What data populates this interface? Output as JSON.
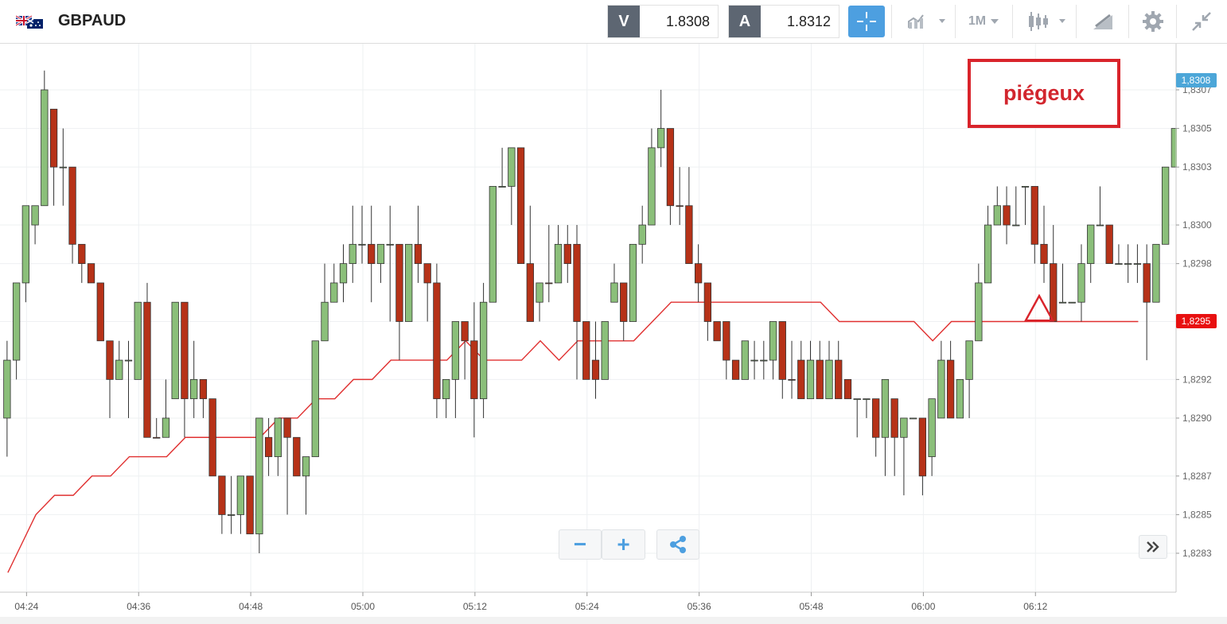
{
  "toolbar": {
    "symbol": "GBPAUD",
    "flag_icon": "gb-au-flag-icon",
    "sell": {
      "tag": "V",
      "price": "1.8308"
    },
    "buy": {
      "tag": "A",
      "price": "1.8312"
    },
    "timeframe": "1M",
    "icons": [
      "crosshair-icon",
      "chart-type-icon",
      "candlestick-icon",
      "draw-tools-icon",
      "gear-icon",
      "collapse-icon"
    ]
  },
  "annotation": {
    "text": "piégeux"
  },
  "controls": {
    "zoom_out": "−",
    "zoom_in": "+",
    "share_icon": "share-icon",
    "forward_icon": "double-chevron-icon"
  },
  "chart_data": {
    "type": "candlestick",
    "title": "",
    "xlabel": "",
    "ylabel": "",
    "ylim": [
      1.82825,
      1.83085
    ],
    "y_ticks": [
      "1,8283",
      "1,8285",
      "1,8287",
      "1,8290",
      "1,8292",
      "1,8295",
      "1,8298",
      "1,8300",
      "1,8303",
      "1,8305",
      "1,8307"
    ],
    "y_tick_values": [
      1.8283,
      1.8285,
      1.8287,
      1.829,
      1.8292,
      1.8295,
      1.8298,
      1.83,
      1.8303,
      1.8305,
      1.8307
    ],
    "x_ticks": [
      "04:24",
      "04:36",
      "04:48",
      "05:00",
      "05:12",
      "05:24",
      "05:36",
      "05:48",
      "06:00",
      "06:12"
    ],
    "x_tick_minutes": [
      264,
      276,
      288,
      300,
      312,
      324,
      336,
      348,
      360,
      372
    ],
    "bid_label": "1,8308",
    "last_label": "1,8295",
    "grid": true,
    "colors": {
      "up": "#8bbf7a",
      "down": "#b63218",
      "ma": "#e03030",
      "bid": "#4ca6d8",
      "last": "#e81010"
    },
    "candles": [
      [
        1.829,
        1.8293,
        1.8294,
        1.8288,
        "up"
      ],
      [
        1.8293,
        1.8297,
        1.8297,
        1.8292,
        "up"
      ],
      [
        1.8297,
        1.8301,
        1.8301,
        1.8296,
        "up"
      ],
      [
        1.83,
        1.8301,
        1.8301,
        1.8299,
        "up"
      ],
      [
        1.8301,
        1.8307,
        1.8308,
        1.8301,
        "up"
      ],
      [
        1.8306,
        1.8303,
        1.8306,
        1.8301,
        "down"
      ],
      [
        1.8303,
        1.8303,
        1.8305,
        1.8301,
        "up"
      ],
      [
        1.8303,
        1.8299,
        1.8303,
        1.8298,
        "down"
      ],
      [
        1.8299,
        1.8298,
        1.8299,
        1.8297,
        "down"
      ],
      [
        1.8298,
        1.8297,
        1.8298,
        1.8297,
        "down"
      ],
      [
        1.8297,
        1.8294,
        1.8297,
        1.8294,
        "down"
      ],
      [
        1.8294,
        1.8292,
        1.8294,
        1.829,
        "down"
      ],
      [
        1.8292,
        1.8293,
        1.8294,
        1.8292,
        "up"
      ],
      [
        1.8293,
        1.8293,
        1.8294,
        1.829,
        "up"
      ],
      [
        1.8292,
        1.8296,
        1.8296,
        1.8292,
        "up"
      ],
      [
        1.8296,
        1.8289,
        1.8297,
        1.8289,
        "down"
      ],
      [
        1.8289,
        1.8289,
        1.829,
        1.8289,
        "down"
      ],
      [
        1.8289,
        1.829,
        1.8292,
        1.8289,
        "up"
      ],
      [
        1.8291,
        1.8296,
        1.8296,
        1.8291,
        "up"
      ],
      [
        1.8296,
        1.8291,
        1.8296,
        1.8289,
        "down"
      ],
      [
        1.8291,
        1.8292,
        1.8294,
        1.829,
        "up"
      ],
      [
        1.8292,
        1.8291,
        1.8292,
        1.829,
        "down"
      ],
      [
        1.8291,
        1.8287,
        1.8291,
        1.8287,
        "down"
      ],
      [
        1.8287,
        1.8285,
        1.8287,
        1.8284,
        "down"
      ],
      [
        1.8285,
        1.8285,
        1.8287,
        1.8284,
        "up"
      ],
      [
        1.8285,
        1.8287,
        1.8287,
        1.8284,
        "up"
      ],
      [
        1.8287,
        1.8284,
        1.8287,
        1.8284,
        "down"
      ],
      [
        1.8284,
        1.829,
        1.829,
        1.8283,
        "up"
      ],
      [
        1.8289,
        1.8288,
        1.829,
        1.8287,
        "down"
      ],
      [
        1.8288,
        1.829,
        1.829,
        1.8287,
        "up"
      ],
      [
        1.829,
        1.8289,
        1.829,
        1.8285,
        "down"
      ],
      [
        1.8289,
        1.8287,
        1.8289,
        1.8287,
        "down"
      ],
      [
        1.8287,
        1.8288,
        1.8288,
        1.8285,
        "up"
      ],
      [
        1.8288,
        1.8294,
        1.8294,
        1.8288,
        "up"
      ],
      [
        1.8294,
        1.8296,
        1.8298,
        1.8294,
        "up"
      ],
      [
        1.8296,
        1.8297,
        1.8298,
        1.8296,
        "up"
      ],
      [
        1.8297,
        1.8298,
        1.8299,
        1.8296,
        "up"
      ],
      [
        1.8298,
        1.8299,
        1.8301,
        1.8297,
        "up"
      ],
      [
        1.8299,
        1.8299,
        1.8301,
        1.8298,
        "up"
      ],
      [
        1.8299,
        1.8298,
        1.8301,
        1.8296,
        "down"
      ],
      [
        1.8298,
        1.8299,
        1.8299,
        1.8297,
        "up"
      ],
      [
        1.8299,
        1.8299,
        1.8301,
        1.8295,
        "up"
      ],
      [
        1.8299,
        1.8295,
        1.8299,
        1.8293,
        "down"
      ],
      [
        1.8295,
        1.8299,
        1.8299,
        1.8295,
        "up"
      ],
      [
        1.8299,
        1.8298,
        1.8301,
        1.8297,
        "down"
      ],
      [
        1.8298,
        1.8297,
        1.8298,
        1.8295,
        "down"
      ],
      [
        1.8297,
        1.8291,
        1.8298,
        1.829,
        "down"
      ],
      [
        1.8291,
        1.8292,
        1.8292,
        1.829,
        "up"
      ],
      [
        1.8292,
        1.8295,
        1.8295,
        1.829,
        "up"
      ],
      [
        1.8295,
        1.8294,
        1.8295,
        1.8292,
        "down"
      ],
      [
        1.8294,
        1.8291,
        1.8296,
        1.8289,
        "down"
      ],
      [
        1.8291,
        1.8296,
        1.8297,
        1.829,
        "up"
      ],
      [
        1.8296,
        1.8302,
        1.8302,
        1.8296,
        "up"
      ],
      [
        1.8302,
        1.8302,
        1.8304,
        1.8302,
        "up"
      ],
      [
        1.8302,
        1.8304,
        1.8304,
        1.83,
        "up"
      ],
      [
        1.8304,
        1.8298,
        1.8304,
        1.8298,
        "down"
      ],
      [
        1.8298,
        1.8295,
        1.8301,
        1.8295,
        "down"
      ],
      [
        1.8296,
        1.8297,
        1.8297,
        1.8295,
        "up"
      ],
      [
        1.8297,
        1.8297,
        1.83,
        1.8296,
        "down"
      ],
      [
        1.8297,
        1.8299,
        1.83,
        1.8297,
        "up"
      ],
      [
        1.8299,
        1.8298,
        1.83,
        1.8297,
        "down"
      ],
      [
        1.8299,
        1.8295,
        1.83,
        1.8292,
        "down"
      ],
      [
        1.8295,
        1.8292,
        1.8295,
        1.8292,
        "down"
      ],
      [
        1.8293,
        1.8292,
        1.8295,
        1.8291,
        "down"
      ],
      [
        1.8292,
        1.8295,
        1.8295,
        1.8292,
        "up"
      ],
      [
        1.8296,
        1.8297,
        1.8298,
        1.8296,
        "up"
      ],
      [
        1.8297,
        1.8295,
        1.8297,
        1.8294,
        "down"
      ],
      [
        1.8295,
        1.8299,
        1.8299,
        1.8295,
        "up"
      ],
      [
        1.8299,
        1.83,
        1.8301,
        1.8298,
        "up"
      ],
      [
        1.83,
        1.8304,
        1.8305,
        1.83,
        "up"
      ],
      [
        1.8304,
        1.8305,
        1.8307,
        1.8303,
        "up"
      ],
      [
        1.8305,
        1.8301,
        1.8305,
        1.83,
        "down"
      ],
      [
        1.8301,
        1.8301,
        1.8303,
        1.83,
        "down"
      ],
      [
        1.8301,
        1.8298,
        1.8303,
        1.8298,
        "down"
      ],
      [
        1.8298,
        1.8297,
        1.8299,
        1.8296,
        "down"
      ],
      [
        1.8297,
        1.8295,
        1.8297,
        1.8294,
        "down"
      ],
      [
        1.8295,
        1.8294,
        1.8295,
        1.8294,
        "down"
      ],
      [
        1.8295,
        1.8293,
        1.8295,
        1.8292,
        "down"
      ],
      [
        1.8293,
        1.8292,
        1.8293,
        1.8292,
        "down"
      ],
      [
        1.8292,
        1.8294,
        1.8294,
        1.8292,
        "up"
      ],
      [
        1.8293,
        1.8293,
        1.8294,
        1.8292,
        "up"
      ],
      [
        1.8293,
        1.8293,
        1.8294,
        1.8292,
        "up"
      ],
      [
        1.8293,
        1.8295,
        1.8295,
        1.8292,
        "up"
      ],
      [
        1.8295,
        1.8292,
        1.8295,
        1.8291,
        "down"
      ],
      [
        1.8292,
        1.8292,
        1.8294,
        1.8291,
        "down"
      ],
      [
        1.8293,
        1.8291,
        1.8294,
        1.8291,
        "down"
      ],
      [
        1.8291,
        1.8293,
        1.8294,
        1.8291,
        "up"
      ],
      [
        1.8293,
        1.8291,
        1.8294,
        1.8291,
        "down"
      ],
      [
        1.8291,
        1.8293,
        1.8294,
        1.8291,
        "up"
      ],
      [
        1.8293,
        1.8291,
        1.8294,
        1.8291,
        "down"
      ],
      [
        1.8292,
        1.8291,
        1.8292,
        1.8291,
        "down"
      ],
      [
        1.8291,
        1.8291,
        1.8291,
        1.8289,
        "up"
      ],
      [
        1.8291,
        1.8291,
        1.8291,
        1.829,
        "up"
      ],
      [
        1.8291,
        1.8289,
        1.8291,
        1.8288,
        "down"
      ],
      [
        1.8289,
        1.8292,
        1.8292,
        1.8287,
        "up"
      ],
      [
        1.8291,
        1.8289,
        1.8291,
        1.8287,
        "down"
      ],
      [
        1.8289,
        1.829,
        1.829,
        1.8286,
        "up"
      ],
      [
        1.829,
        1.829,
        1.829,
        1.829,
        "up"
      ],
      [
        1.829,
        1.8287,
        1.829,
        1.8286,
        "down"
      ],
      [
        1.8288,
        1.8291,
        1.8291,
        1.8287,
        "up"
      ],
      [
        1.829,
        1.8293,
        1.8294,
        1.829,
        "up"
      ],
      [
        1.8293,
        1.829,
        1.8294,
        1.829,
        "down"
      ],
      [
        1.829,
        1.8292,
        1.8292,
        1.829,
        "up"
      ],
      [
        1.8292,
        1.8294,
        1.8294,
        1.829,
        "up"
      ],
      [
        1.8294,
        1.8297,
        1.8298,
        1.8294,
        "up"
      ],
      [
        1.8297,
        1.83,
        1.8301,
        1.8297,
        "up"
      ],
      [
        1.83,
        1.8301,
        1.8302,
        1.83,
        "up"
      ],
      [
        1.8301,
        1.83,
        1.8302,
        1.8299,
        "down"
      ],
      [
        1.83,
        1.83,
        1.8302,
        1.83,
        "up"
      ],
      [
        1.8302,
        1.8302,
        1.8302,
        1.83,
        "up"
      ],
      [
        1.8302,
        1.8299,
        1.8302,
        1.8298,
        "down"
      ],
      [
        1.8299,
        1.8298,
        1.8301,
        1.8297,
        "down"
      ],
      [
        1.8298,
        1.8295,
        1.83,
        1.8295,
        "down"
      ],
      [
        1.8296,
        1.8296,
        1.8298,
        1.8296,
        "up"
      ],
      [
        1.8296,
        1.8296,
        1.8296,
        1.8296,
        "up"
      ],
      [
        1.8296,
        1.8298,
        1.8299,
        1.8295,
        "up"
      ],
      [
        1.8298,
        1.83,
        1.83,
        1.8297,
        "up"
      ],
      [
        1.83,
        1.83,
        1.8302,
        1.83,
        "up"
      ],
      [
        1.83,
        1.8298,
        1.83,
        1.8298,
        "down"
      ],
      [
        1.8298,
        1.8298,
        1.8299,
        1.8298,
        "up"
      ],
      [
        1.8298,
        1.8298,
        1.8299,
        1.8297,
        "up"
      ],
      [
        1.8298,
        1.8298,
        1.8299,
        1.8297,
        "up"
      ],
      [
        1.8298,
        1.8296,
        1.8299,
        1.8293,
        "down"
      ],
      [
        1.8296,
        1.8299,
        1.8299,
        1.8296,
        "up"
      ],
      [
        1.8299,
        1.8303,
        1.8303,
        1.8299,
        "up"
      ],
      [
        1.8303,
        1.8305,
        1.8305,
        1.8303,
        "up"
      ]
    ],
    "ma": [
      [
        262,
        1.8282
      ],
      [
        263,
        1.8283
      ],
      [
        265,
        1.8285
      ],
      [
        267,
        1.8286
      ],
      [
        269,
        1.8286
      ],
      [
        271,
        1.8287
      ],
      [
        273,
        1.8287
      ],
      [
        275,
        1.8288
      ],
      [
        277,
        1.8288
      ],
      [
        279,
        1.8288
      ],
      [
        281,
        1.8289
      ],
      [
        283,
        1.8289
      ],
      [
        285,
        1.8289
      ],
      [
        287,
        1.8289
      ],
      [
        289,
        1.8289
      ],
      [
        291,
        1.829
      ],
      [
        293,
        1.829
      ],
      [
        295,
        1.8291
      ],
      [
        297,
        1.8291
      ],
      [
        299,
        1.8292
      ],
      [
        301,
        1.8292
      ],
      [
        303,
        1.8293
      ],
      [
        305,
        1.8293
      ],
      [
        307,
        1.8293
      ],
      [
        309,
        1.8293
      ],
      [
        311,
        1.8294
      ],
      [
        313,
        1.8293
      ],
      [
        315,
        1.8293
      ],
      [
        317,
        1.8293
      ],
      [
        319,
        1.8294
      ],
      [
        321,
        1.8293
      ],
      [
        323,
        1.8294
      ],
      [
        325,
        1.8294
      ],
      [
        327,
        1.8294
      ],
      [
        329,
        1.8294
      ],
      [
        331,
        1.8295
      ],
      [
        333,
        1.8296
      ],
      [
        335,
        1.8296
      ],
      [
        337,
        1.8296
      ],
      [
        339,
        1.8296
      ],
      [
        341,
        1.8296
      ],
      [
        343,
        1.8296
      ],
      [
        345,
        1.8296
      ],
      [
        347,
        1.8296
      ],
      [
        349,
        1.8296
      ],
      [
        351,
        1.8295
      ],
      [
        353,
        1.8295
      ],
      [
        355,
        1.8295
      ],
      [
        357,
        1.8295
      ],
      [
        359,
        1.8295
      ],
      [
        361,
        1.8294
      ],
      [
        363,
        1.8295
      ],
      [
        365,
        1.8295
      ],
      [
        367,
        1.8295
      ],
      [
        369,
        1.8295
      ],
      [
        371,
        1.8295
      ],
      [
        373,
        1.8295
      ],
      [
        375,
        1.8295
      ],
      [
        377,
        1.8295
      ],
      [
        379,
        1.8295
      ],
      [
        381,
        1.8295
      ],
      [
        383,
        1.8295
      ]
    ],
    "marker": {
      "x": 368.5,
      "y": 1.8296,
      "shape": "triangle",
      "color": "#d9242b"
    }
  }
}
